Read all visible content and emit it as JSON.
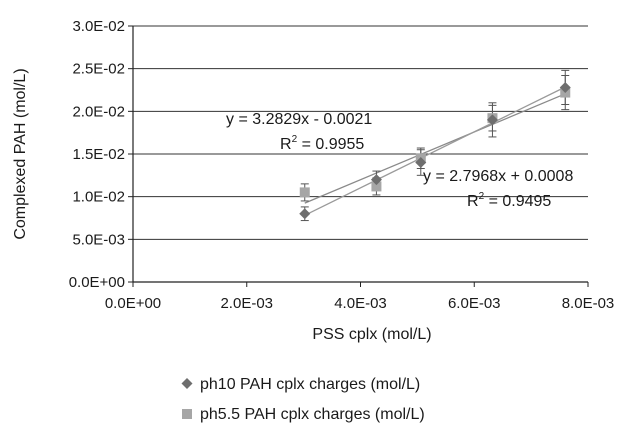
{
  "chart_data": {
    "type": "scatter",
    "xlabel": "PSS cplx (mol/L)",
    "ylabel": "Complexed PAH (mol/L)",
    "xlim": [
      0,
      0.008
    ],
    "ylim": [
      0,
      0.03
    ],
    "x_ticks": [
      "0.0E+00",
      "2.0E-03",
      "4.0E-03",
      "6.0E-03",
      "8.0E-03"
    ],
    "y_ticks": [
      "0.0E+00",
      "5.0E-03",
      "1.0E-02",
      "1.5E-02",
      "2.0E-02",
      "2.5E-02",
      "3.0E-02"
    ],
    "grid": "horizontal",
    "legend_position": "bottom",
    "series": [
      {
        "name": "ph10 PAH cplx charges (mol/L)",
        "marker": "diamond",
        "color": "#6e6e6e",
        "x": [
          0.00302,
          0.00428,
          0.00506,
          0.00632,
          0.0076
        ],
        "y": [
          0.008,
          0.012,
          0.014,
          0.019,
          0.0228
        ],
        "error": [
          0.0008,
          0.001,
          0.0015,
          0.002,
          0.002
        ],
        "trendline": {
          "slope": 2.7968,
          "intercept": 0.0008,
          "equation": "y = 2.7968x + 0.0008",
          "r2_prefix": "R",
          "r2_sup": "2",
          "r2_value": " = 0.9495"
        }
      },
      {
        "name": "ph5.5 PAH cplx charges (mol/L)",
        "marker": "square",
        "color": "#a6a6a6",
        "x": [
          0.00302,
          0.00428,
          0.00506,
          0.00632,
          0.0076
        ],
        "y": [
          0.0105,
          0.0112,
          0.0145,
          0.0192,
          0.0222
        ],
        "error": [
          0.001,
          0.001,
          0.0012,
          0.0015,
          0.002
        ],
        "trendline": {
          "slope": 3.2829,
          "intercept": -0.0021,
          "equation": "y = 3.2829x - 0.0021",
          "r2_prefix": "R",
          "r2_sup": "2",
          "r2_value": " = 0.9955"
        }
      }
    ]
  }
}
